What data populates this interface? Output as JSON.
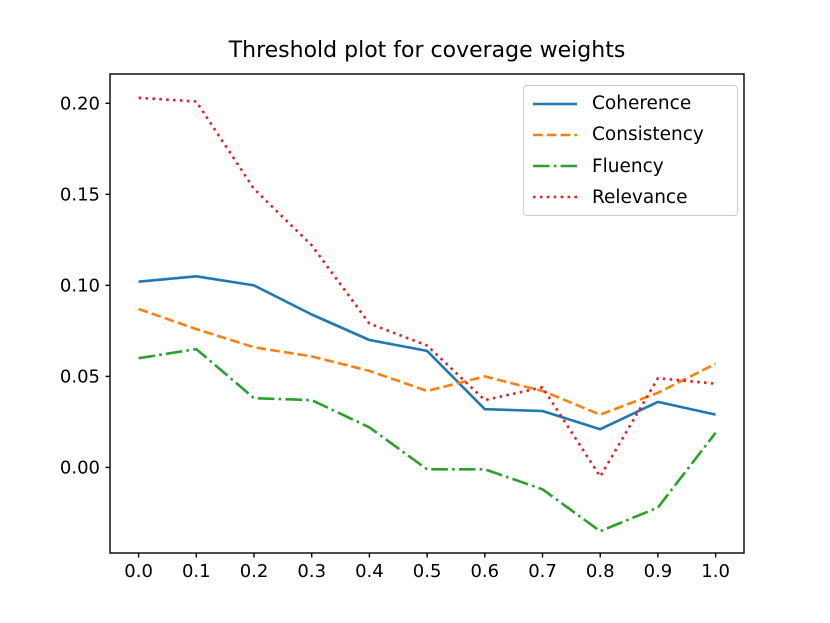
{
  "chart_data": {
    "type": "line",
    "title": "Threshold plot for coverage weights",
    "xlabel": "",
    "ylabel": "",
    "grid": false,
    "legend_position": "upper right",
    "x": [
      0.0,
      0.1,
      0.2,
      0.3,
      0.4,
      0.5,
      0.6,
      0.7,
      0.8,
      0.9,
      1.0
    ],
    "x_tick_labels": [
      "0.0",
      "0.1",
      "0.2",
      "0.3",
      "0.4",
      "0.5",
      "0.6",
      "0.7",
      "0.8",
      "0.9",
      "1.0"
    ],
    "y_ticks": [
      0.0,
      0.05,
      0.1,
      0.15,
      0.2
    ],
    "y_tick_labels": [
      "0.00",
      "0.05",
      "0.10",
      "0.15",
      "0.20"
    ],
    "xlim": [
      -0.0496,
      1.0492
    ],
    "ylim": [
      -0.047,
      0.2161
    ],
    "axis_color": "#000000",
    "series": [
      {
        "name": "Coherence",
        "color": "#1f77b4",
        "style": "solid",
        "values": [
          0.102,
          0.105,
          0.1,
          0.084,
          0.07,
          0.064,
          0.032,
          0.031,
          0.021,
          0.036,
          0.029
        ]
      },
      {
        "name": "Consistency",
        "color": "#ff7f0e",
        "style": "dashed",
        "values": [
          0.087,
          0.076,
          0.066,
          0.061,
          0.053,
          0.042,
          0.05,
          0.042,
          0.029,
          0.041,
          0.057
        ]
      },
      {
        "name": "Fluency",
        "color": "#2ca02c",
        "style": "dashdot",
        "values": [
          0.06,
          0.065,
          0.038,
          0.037,
          0.022,
          -0.001,
          -0.001,
          -0.012,
          -0.035,
          -0.022,
          0.019
        ]
      },
      {
        "name": "Relevance",
        "color": "#d62728",
        "style": "dotted",
        "values": [
          0.203,
          0.201,
          0.153,
          0.122,
          0.079,
          0.067,
          0.037,
          0.044,
          -0.005,
          0.049,
          0.046
        ]
      }
    ]
  }
}
